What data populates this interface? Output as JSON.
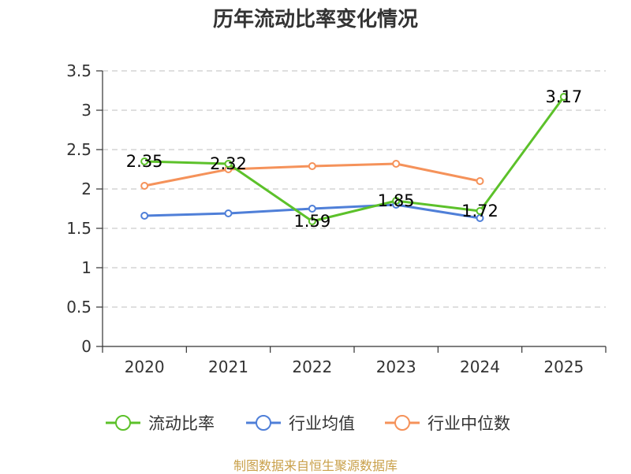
{
  "chart_data": {
    "type": "line",
    "title": "历年流动比率变化情况",
    "categories": [
      "2020",
      "2021",
      "2022",
      "2023",
      "2024",
      "2025"
    ],
    "ylim": [
      0,
      3.5
    ],
    "yticks": [
      "0",
      "0.5",
      "1",
      "1.5",
      "2",
      "2.5",
      "3",
      "3.5"
    ],
    "grid": true,
    "legend_position": "bottom",
    "series": [
      {
        "name": "流动比率",
        "color": "#5cc12a",
        "values": [
          2.35,
          2.32,
          1.59,
          1.85,
          1.72,
          3.17
        ],
        "labels": [
          "2.35",
          "2.32",
          "1.59",
          "1.85",
          "1.72",
          "3.17"
        ]
      },
      {
        "name": "行业均值",
        "color": "#4f7fd8",
        "values": [
          1.66,
          1.69,
          1.75,
          1.8,
          1.63,
          null
        ]
      },
      {
        "name": "行业中位数",
        "color": "#f5925a",
        "values": [
          2.04,
          2.25,
          2.29,
          2.32,
          2.1,
          null
        ]
      }
    ]
  },
  "source_note": "制图数据来自恒生聚源数据库"
}
